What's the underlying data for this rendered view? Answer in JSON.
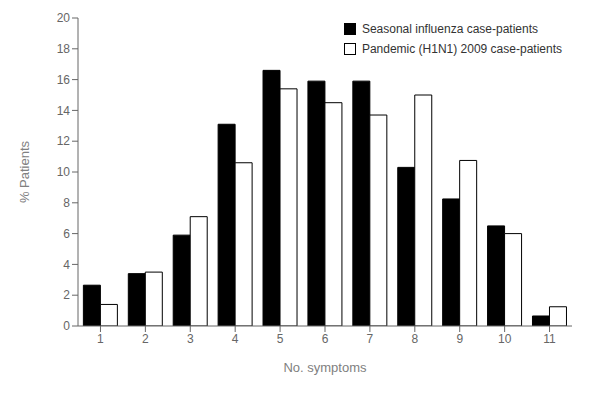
{
  "chart_data": {
    "type": "bar",
    "categories": [
      1,
      2,
      3,
      4,
      5,
      6,
      7,
      8,
      9,
      10,
      11
    ],
    "series": [
      {
        "name": "Seasonal influenza case-patients",
        "color": "#000000",
        "values": [
          2.65,
          3.4,
          5.9,
          13.1,
          16.6,
          15.9,
          15.9,
          10.3,
          8.25,
          6.5,
          0.65
        ]
      },
      {
        "name": "Pandemic (H1N1) 2009 case-patients",
        "color": "#ffffff",
        "values": [
          1.4,
          3.5,
          7.1,
          10.6,
          15.4,
          14.5,
          13.7,
          15.0,
          10.75,
          6.0,
          1.25
        ]
      }
    ],
    "xlabel": "No. symptoms",
    "ylabel": "% Patients",
    "ylim": [
      0,
      20
    ],
    "yticks": [
      0,
      2,
      4,
      6,
      8,
      10,
      12,
      14,
      16,
      18,
      20
    ],
    "grid": false,
    "legend": "upper right"
  }
}
